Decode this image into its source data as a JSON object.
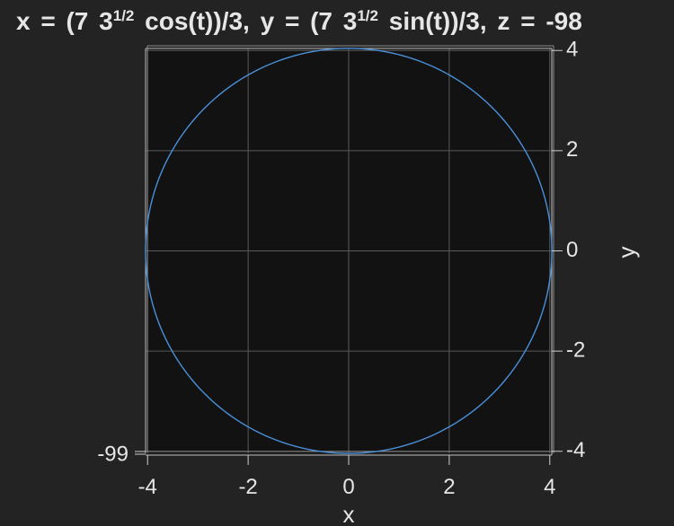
{
  "title": {
    "prefix": "x = (7 3",
    "exp1": "1/2",
    "middle": " cos(t))/3, y = (7 3",
    "exp2": "1/2",
    "suffix": " sin(t))/3, z = -98"
  },
  "chart_data": {
    "type": "line",
    "title": "x = (7 3^(1/2) cos(t))/3, y = (7 3^(1/2) sin(t))/3, z = -98",
    "xlabel": "x",
    "ylabel": "y",
    "xlim": [
      -4.04,
      4.04
    ],
    "ylim": [
      -4.04,
      4.04
    ],
    "x_ticks": [
      -4,
      -2,
      0,
      2,
      4
    ],
    "y_ticks": [
      -4,
      -2,
      0,
      2,
      4
    ],
    "x_tick_labels": [
      "-4",
      "-2",
      "0",
      "2",
      "4"
    ],
    "y_tick_labels": [
      "-4",
      "-2",
      "0",
      "2",
      "4"
    ],
    "z_tick_label": "-99",
    "grid": true,
    "parametric": {
      "x": "(7*sqrt(3)/3)*cos(t)",
      "y": "(7*sqrt(3)/3)*sin(t)",
      "z": -98,
      "radius": 4.0415,
      "t_range": [
        0,
        6.283185
      ]
    },
    "series": [
      {
        "color": "#4a90d9"
      }
    ],
    "colors": {
      "background": "#232323",
      "plot_background": "#121212",
      "grid": "#5a5a5a",
      "axis": "#cfcfcf",
      "text": "#e6e6e6"
    }
  }
}
